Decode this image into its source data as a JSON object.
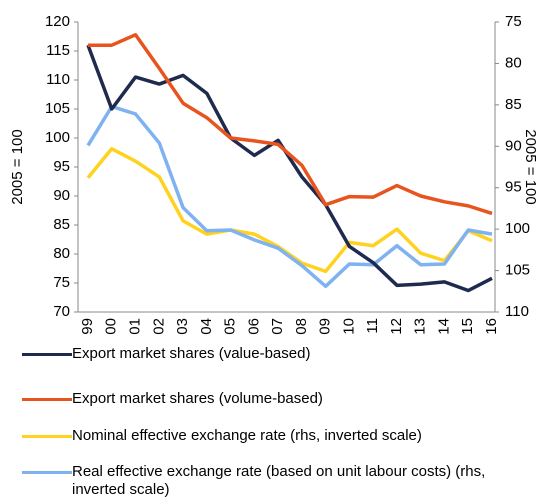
{
  "chart_data": {
    "type": "line",
    "categories": [
      "99",
      "00",
      "01",
      "02",
      "03",
      "04",
      "05",
      "06",
      "07",
      "08",
      "09",
      "10",
      "11",
      "12",
      "13",
      "14",
      "15",
      "16"
    ],
    "ylabel": "2005 = 100",
    "y2label": "2005 = 100",
    "ylim": [
      70,
      120
    ],
    "yticks": [
      70,
      75,
      80,
      85,
      90,
      95,
      100,
      105,
      110,
      115,
      120
    ],
    "y2lim": [
      75,
      110
    ],
    "y2ticks": [
      75,
      80,
      85,
      90,
      95,
      100,
      105,
      110
    ],
    "y2_inverted": true,
    "grid": false,
    "legend": "bottom",
    "series": [
      {
        "name": "Export market shares (value-based)",
        "color": "#1f2a4f",
        "values": [
          116,
          105,
          110.5,
          109.3,
          110.8,
          107.7,
          100,
          97,
          99.6,
          93.3,
          88.5,
          81.3,
          78.5,
          74.6,
          74.8,
          75.2,
          73.7,
          75.8
        ]
      },
      {
        "name": "Export market shares (volume-based)",
        "color": "#e8541e",
        "values": [
          116,
          116,
          117.8,
          112,
          106,
          103.5,
          100,
          99.5,
          98.9,
          95.3,
          88.5,
          89.9,
          89.8,
          91.8,
          90,
          89,
          88.3,
          87
        ]
      },
      {
        "name": "Nominal effective exchange rate (rhs, inverted scale)",
        "color": "#ffd21f",
        "axis": "y2",
        "values": [
          93.8,
          90.3,
          91.8,
          93.7,
          99.0,
          100.6,
          100.1,
          100.6,
          102.1,
          104.1,
          105.1,
          101.6,
          102.0,
          100.0,
          102.9,
          103.8,
          100.2,
          101.4
        ]
      },
      {
        "name": "Real effective exchange rate (based on unit labour costs) (rhs, inverted scale)",
        "color": "#7fb2f0",
        "axis": "y2",
        "values": [
          89.9,
          85.2,
          86.1,
          89.6,
          97.4,
          100.2,
          100.1,
          101.3,
          102.3,
          104.4,
          106.9,
          104.2,
          104.3,
          102.0,
          104.3,
          104.2,
          100.1,
          100.6
        ]
      }
    ]
  }
}
